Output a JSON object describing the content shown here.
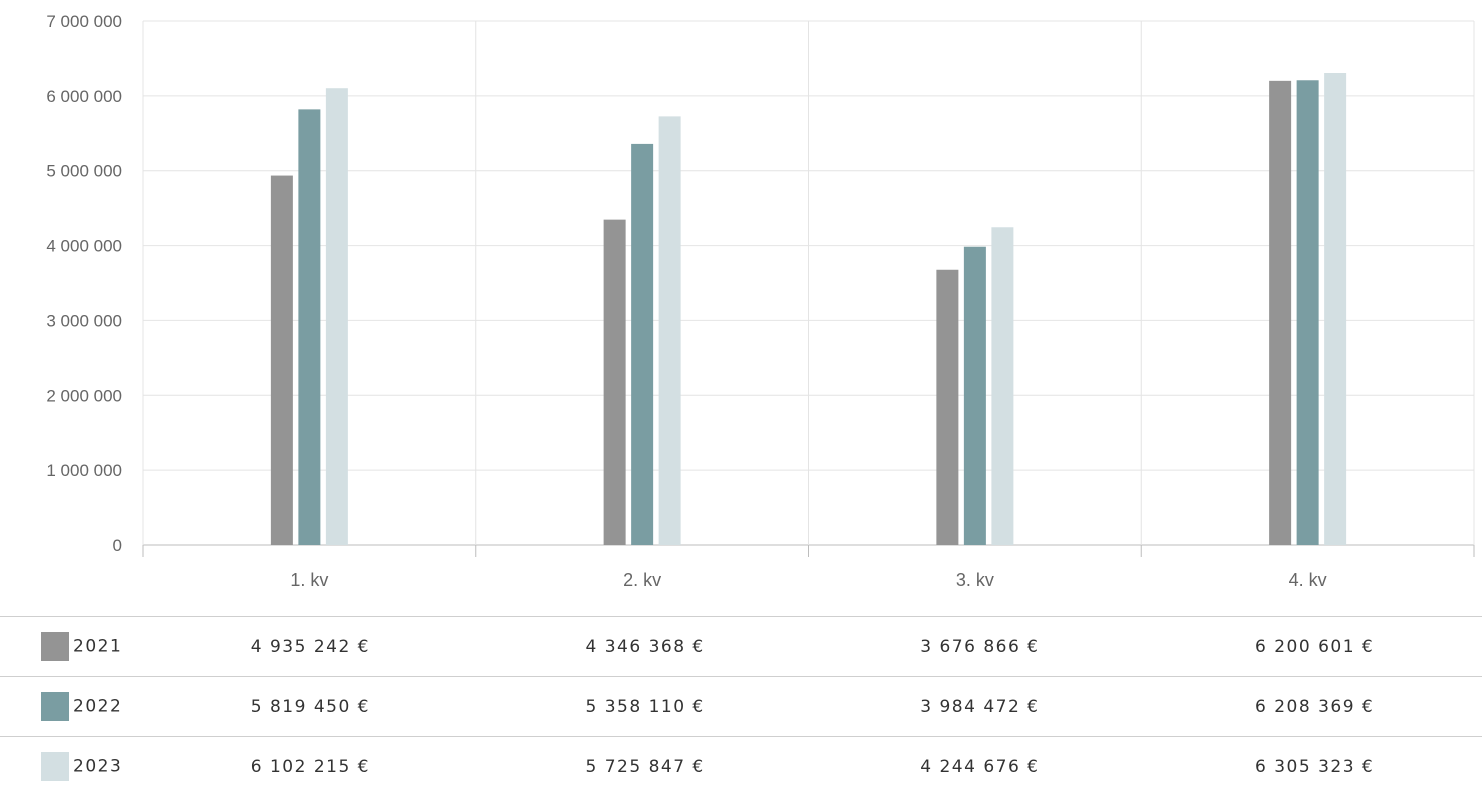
{
  "chart_data": {
    "type": "bar",
    "categories": [
      "1. kv",
      "2. kv",
      "3. kv",
      "4. kv"
    ],
    "series": [
      {
        "name": "2021",
        "color": "#949494",
        "values": [
          4935242,
          4346368,
          3676866,
          6200601
        ]
      },
      {
        "name": "2022",
        "color": "#7a9da2",
        "values": [
          5819450,
          5358110,
          3984472,
          6208369
        ]
      },
      {
        "name": "2023",
        "color": "#d3dfe2",
        "values": [
          6102215,
          5725847,
          4244676,
          6305323
        ]
      }
    ],
    "ylim": [
      0,
      7000000
    ],
    "yticks": [
      "0",
      "1 000 000",
      "2 000 000",
      "3 000 000",
      "4 000 000",
      "5 000 000",
      "6 000 000",
      "7 000 000"
    ],
    "grid": true,
    "legend": "table-below"
  },
  "table": {
    "rows": [
      {
        "label": "2021",
        "values": [
          "4 935 242 €",
          "4 346 368 €",
          "3 676 866 €",
          "6 200 601 €"
        ]
      },
      {
        "label": "2022",
        "values": [
          "5 819 450 €",
          "5 358 110 €",
          "3 984 472 €",
          "6 208 369 €"
        ]
      },
      {
        "label": "2023",
        "values": [
          "6 102 215 €",
          "5 725 847 €",
          "4 244 676 €",
          "6 305 323 €"
        ]
      }
    ]
  }
}
